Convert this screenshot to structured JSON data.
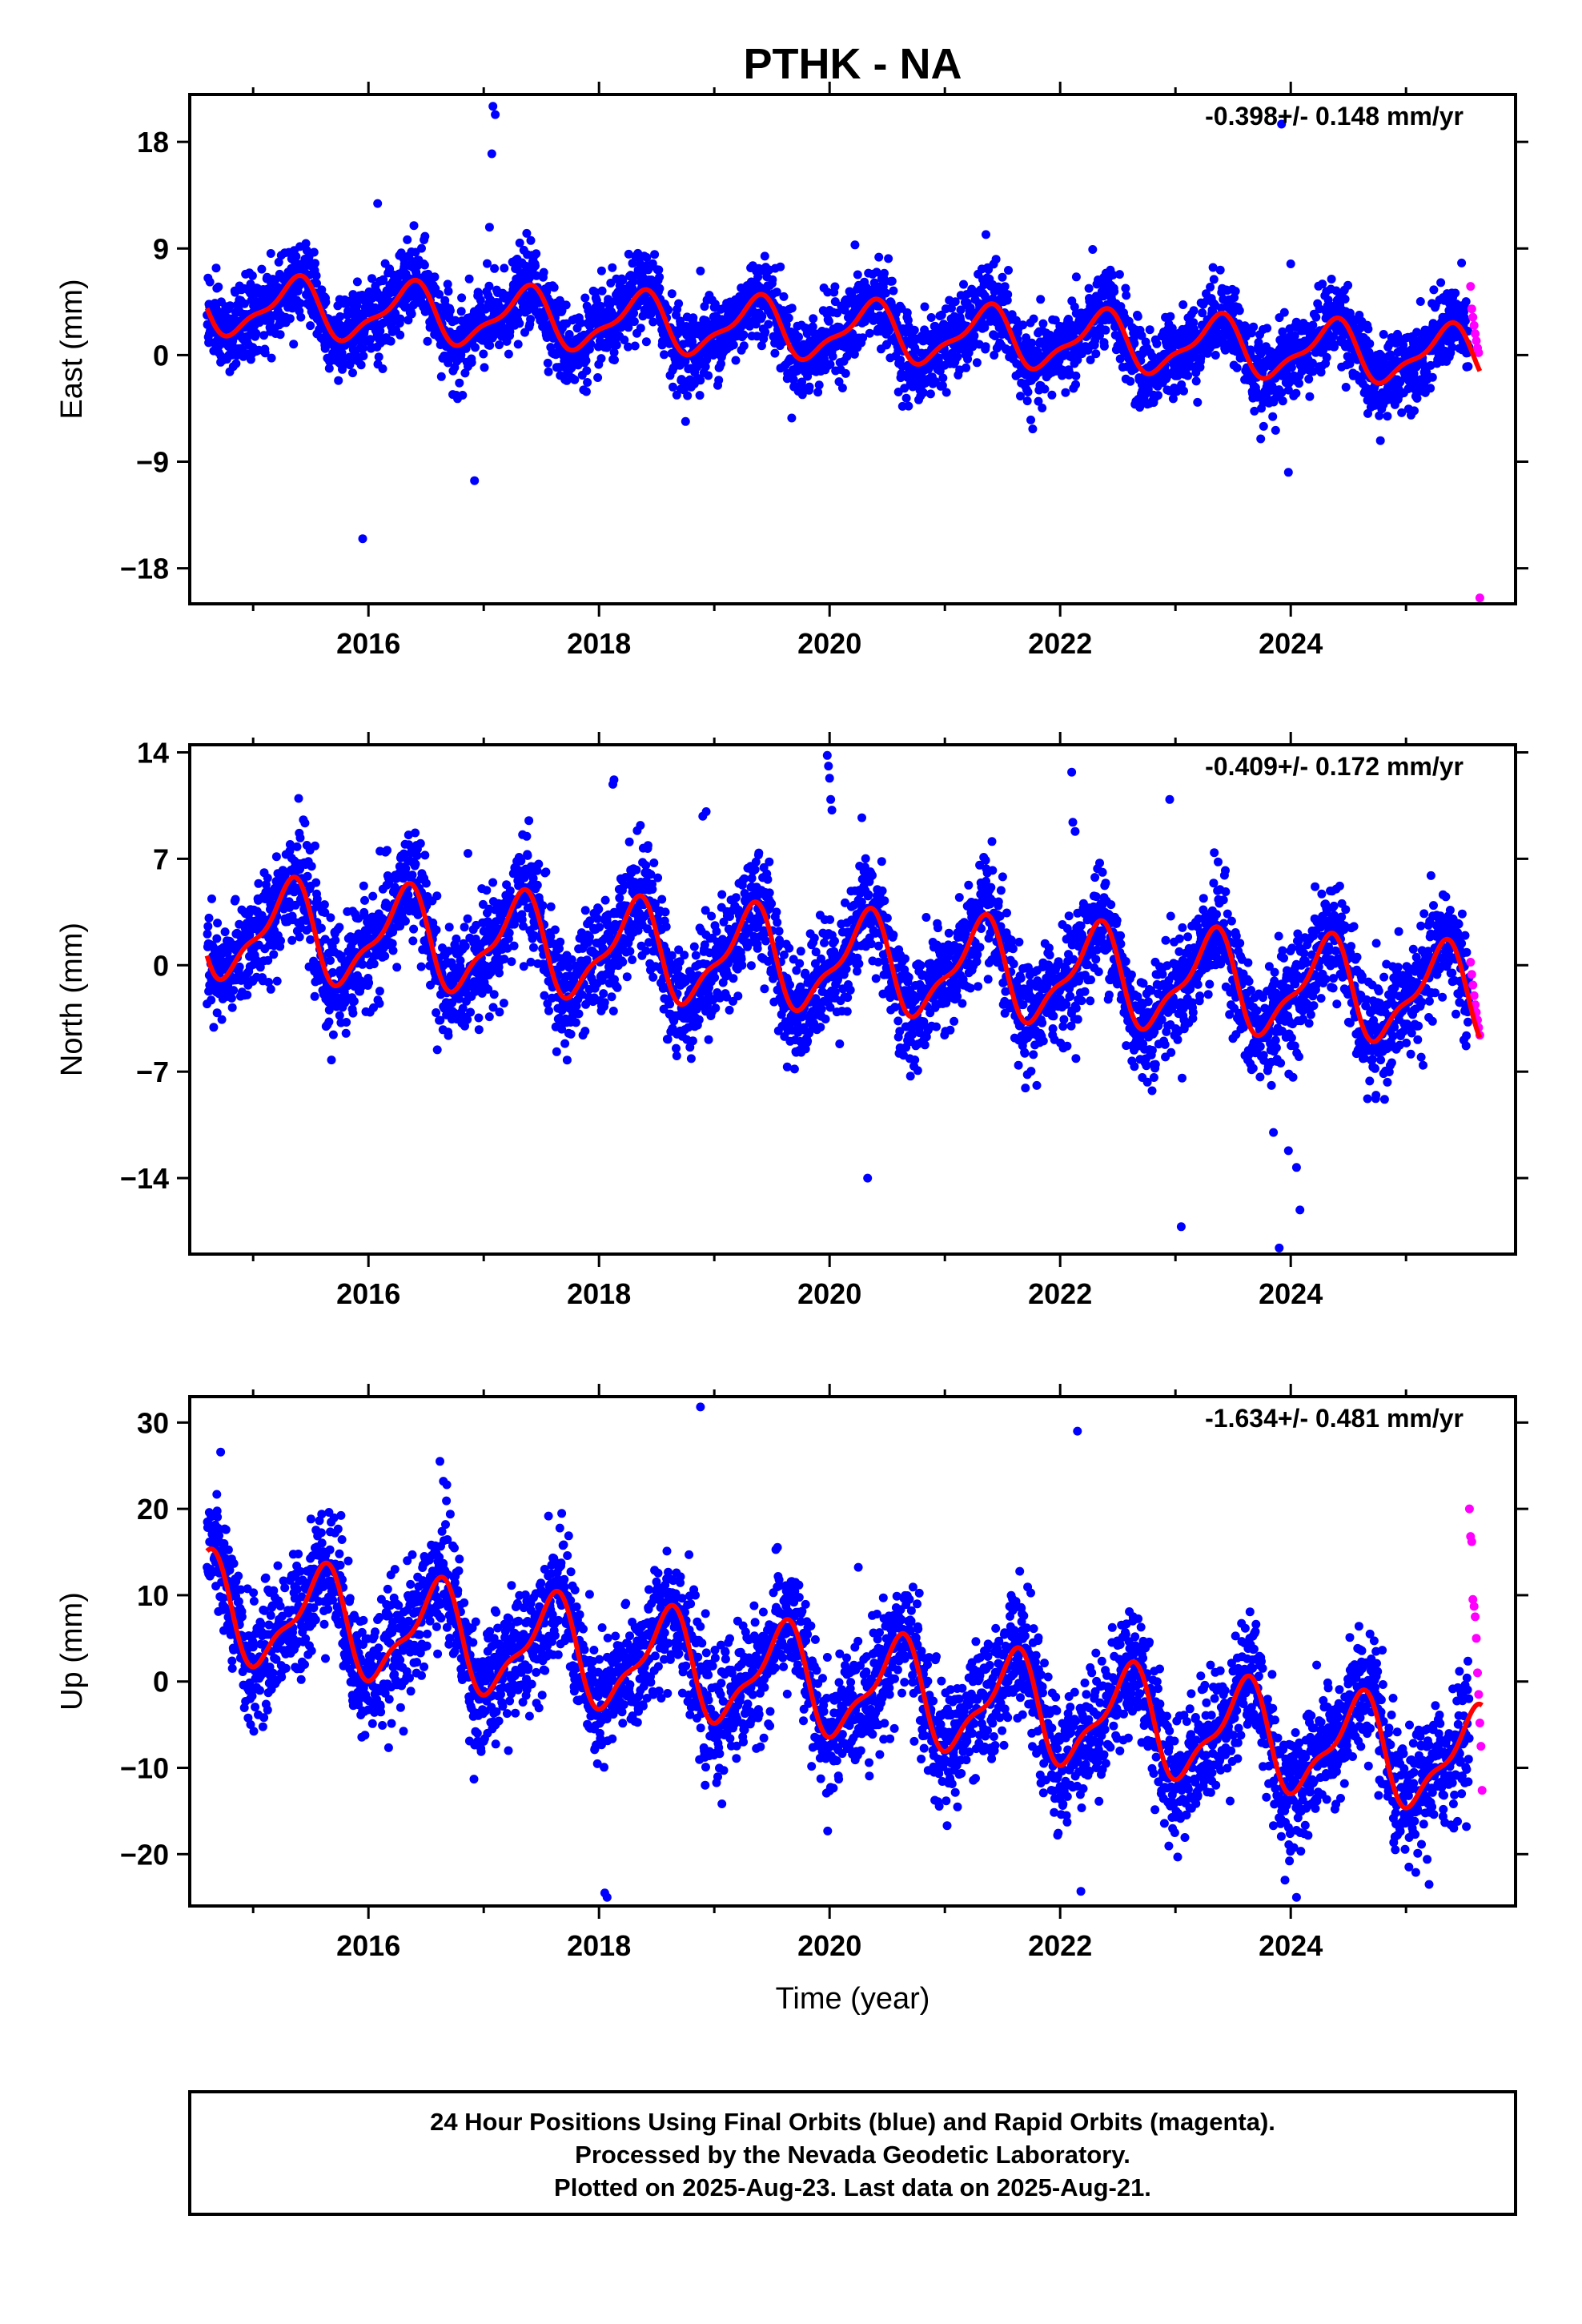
{
  "figure": {
    "title": "PTHK - NA",
    "footer": {
      "lines": [
        "24 Hour Positions Using Final Orbits (blue) and Rapid Orbits (magenta).",
        "Processed by the Nevada Geodetic Laboratory.",
        "Plotted on 2025-Aug-23. Last data on 2025-Aug-21."
      ]
    }
  },
  "chart_data": [
    {
      "type": "scatter",
      "panel": "east",
      "ylabel": "East (mm)",
      "xlabel": "",
      "rate_label": "-0.398+/- 0.148 mm/yr",
      "xlim": [
        2014.45,
        2025.95
      ],
      "ylim": [
        -21,
        22
      ],
      "xticks": [
        2016,
        2018,
        2020,
        2022,
        2024
      ],
      "xtick_labels": [
        "2016",
        "2018",
        "2020",
        "2022",
        "2024"
      ],
      "yticks": [
        -18,
        -9,
        0,
        9,
        18
      ],
      "ytick_labels": [
        "−18",
        "−9",
        "0",
        "9",
        "18"
      ],
      "grid": false,
      "series": [
        {
          "role": "final",
          "color": "#0000ff",
          "trend": 4.2,
          "rate": -0.398,
          "amplitude": 2.3,
          "phase": 0.35,
          "noise": 1.7,
          "x_start": 2014.6,
          "x_end": 2025.55
        },
        {
          "role": "rapid",
          "color": "#ff00ff",
          "x": [
            2025.56,
            2025.57,
            2025.58,
            2025.59,
            2025.6,
            2025.61,
            2025.62,
            2025.63,
            2025.64
          ],
          "values": [
            5.8,
            3.9,
            3.2,
            2.5,
            1.8,
            1.2,
            0.6,
            0.2,
            -20.5
          ]
        },
        {
          "role": "model",
          "color": "#ff0000"
        }
      ],
      "outliers": {
        "x": [
          2015.95,
          2016.08,
          2016.92,
          2017.05,
          2017.07,
          2017.08,
          2017.1,
          2018.88,
          2020.22,
          2022.14,
          2023.92,
          2024.0,
          2023.98
        ],
        "values": [
          -15.5,
          12.8,
          -10.6,
          10.8,
          17.0,
          21.0,
          20.3,
          7.1,
          9.3,
          6.6,
          19.5,
          7.7,
          -9.9
        ]
      }
    },
    {
      "type": "scatter",
      "panel": "north",
      "ylabel": "North (mm)",
      "xlabel": "",
      "rate_label": "-0.409+/- 0.172 mm/yr",
      "xlim": [
        2014.45,
        2025.95
      ],
      "ylim": [
        -19,
        14.5
      ],
      "xticks": [
        2016,
        2018,
        2020,
        2022,
        2024
      ],
      "xtick_labels": [
        "2016",
        "2018",
        "2020",
        "2022",
        "2024"
      ],
      "yticks": [
        -14,
        -7,
        0,
        7,
        14
      ],
      "ytick_labels": [
        "−14",
        "−7",
        "0",
        "7",
        "14"
      ],
      "grid": false,
      "series": [
        {
          "role": "final",
          "color": "#0000ff",
          "trend": 2.4,
          "rate": -0.409,
          "amplitude": 3.0,
          "phase": 0.3,
          "noise": 1.8,
          "x_start": 2014.6,
          "x_end": 2025.55
        },
        {
          "role": "rapid",
          "color": "#ff00ff",
          "x": [
            2025.56,
            2025.57,
            2025.58,
            2025.59,
            2025.6,
            2025.61,
            2025.62,
            2025.63,
            2025.64
          ],
          "values": [
            0.2,
            -0.6,
            -1.3,
            -2.0,
            -2.6,
            -3.1,
            -3.6,
            -4.1,
            -4.6
          ]
        },
        {
          "role": "model",
          "color": "#ff0000"
        }
      ],
      "outliers": {
        "x": [
          2018.12,
          2018.13,
          2018.9,
          2018.93,
          2019.98,
          2019.99,
          2020.0,
          2020.01,
          2020.02,
          2020.28,
          2020.33,
          2022.1,
          2022.11,
          2022.13,
          2022.95,
          2023.05,
          2023.85,
          2023.9,
          2023.98,
          2024.05,
          2024.08,
          2016.1
        ],
        "values": [
          11.9,
          12.2,
          9.8,
          10.1,
          13.8,
          13.1,
          12.3,
          10.9,
          10.2,
          9.7,
          -14.0,
          12.7,
          9.4,
          8.8,
          10.9,
          -17.2,
          -11.0,
          -18.6,
          -12.2,
          -13.3,
          -16.1,
          7.5
        ]
      }
    },
    {
      "type": "scatter",
      "panel": "up",
      "ylabel": "Up (mm)",
      "xlabel": "Time (year)",
      "rate_label": "-1.634+/- 0.481 mm/yr",
      "xlim": [
        2014.45,
        2025.95
      ],
      "ylim": [
        -26,
        33
      ],
      "xticks": [
        2016,
        2018,
        2020,
        2022,
        2024
      ],
      "xtick_labels": [
        "2016",
        "2018",
        "2020",
        "2022",
        "2024"
      ],
      "yticks": [
        -20,
        -10,
        0,
        10,
        20,
        30
      ],
      "ytick_labels": [
        "−20",
        "−10",
        "0",
        "10",
        "20",
        "30"
      ],
      "grid": false,
      "series": [
        {
          "role": "final",
          "color": "#0000ff",
          "trend": 8.5,
          "rate": -1.634,
          "amplitude": 5.6,
          "phase": 0.58,
          "noise": 3.6,
          "x_start": 2014.6,
          "x_end": 2025.55
        },
        {
          "role": "rapid",
          "color": "#ff00ff",
          "x": [
            2025.55,
            2025.56,
            2025.57,
            2025.58,
            2025.59,
            2025.6,
            2025.61,
            2025.62,
            2025.63,
            2025.64,
            2025.65,
            2025.66
          ],
          "values": [
            20.0,
            16.8,
            16.2,
            9.5,
            8.7,
            7.5,
            5.0,
            1.0,
            -1.5,
            -4.8,
            -7.5,
            -12.6
          ]
        },
        {
          "role": "model",
          "color": "#ff0000"
        }
      ],
      "outliers": {
        "x": [
          2016.62,
          2016.65,
          2016.68,
          2018.05,
          2018.07,
          2018.88,
          2022.15,
          2022.18,
          2023.95,
          2024.05,
          2025.2
        ],
        "values": [
          25.5,
          23.2,
          22.8,
          -24.5,
          -25.0,
          31.8,
          29.0,
          -24.3,
          -23.0,
          -25.0,
          -23.5
        ]
      }
    }
  ]
}
